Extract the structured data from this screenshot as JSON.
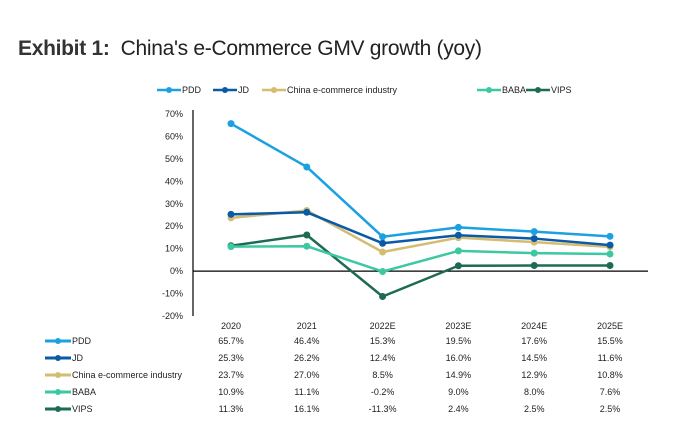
{
  "title": {
    "prefix": "Exhibit 1:",
    "text": "China's e-Commerce GMV growth (yoy)"
  },
  "chart_data": {
    "type": "line",
    "title": "China's e-Commerce GMV growth (yoy)",
    "xlabel": "",
    "ylabel": "",
    "categories": [
      "2020",
      "2021",
      "2022E",
      "2023E",
      "2024E",
      "2025E"
    ],
    "ylim": [
      -20,
      70
    ],
    "yticks": [
      70,
      60,
      50,
      40,
      30,
      20,
      10,
      0,
      -10,
      -20
    ],
    "ytick_labels": [
      "70%",
      "60%",
      "50%",
      "40%",
      "30%",
      "20%",
      "10%",
      "0%",
      "-10%",
      "-20%"
    ],
    "grid": false,
    "legend_position": "top-center",
    "series": [
      {
        "name": "PDD",
        "color": "#1BA1E2",
        "values": [
          65.7,
          46.4,
          15.3,
          19.5,
          17.6,
          15.5
        ],
        "labels": [
          "65.7%",
          "46.4%",
          "15.3%",
          "19.5%",
          "17.6%",
          "15.5%"
        ]
      },
      {
        "name": "JD",
        "color": "#0B5AA6",
        "values": [
          25.3,
          26.2,
          12.4,
          16.0,
          14.5,
          11.6
        ],
        "labels": [
          "25.3%",
          "26.2%",
          "12.4%",
          "16.0%",
          "14.5%",
          "11.6%"
        ]
      },
      {
        "name": "China e-commerce industry",
        "color": "#D4BC72",
        "values": [
          23.7,
          27.0,
          8.5,
          14.9,
          12.9,
          10.8
        ],
        "labels": [
          "23.7%",
          "27.0%",
          "8.5%",
          "14.9%",
          "12.9%",
          "10.8%"
        ]
      },
      {
        "name": "BABA",
        "color": "#3CC8A0",
        "values": [
          10.9,
          11.1,
          -0.2,
          9.0,
          8.0,
          7.6
        ],
        "labels": [
          "10.9%",
          "11.1%",
          "-0.2%",
          "9.0%",
          "8.0%",
          "7.6%"
        ]
      },
      {
        "name": "VIPS",
        "color": "#1E6B55",
        "values": [
          11.3,
          16.1,
          -11.3,
          2.4,
          2.5,
          2.5
        ],
        "labels": [
          "11.3%",
          "16.1%",
          "-11.3%",
          "2.4%",
          "2.5%",
          "2.5%"
        ]
      }
    ]
  }
}
